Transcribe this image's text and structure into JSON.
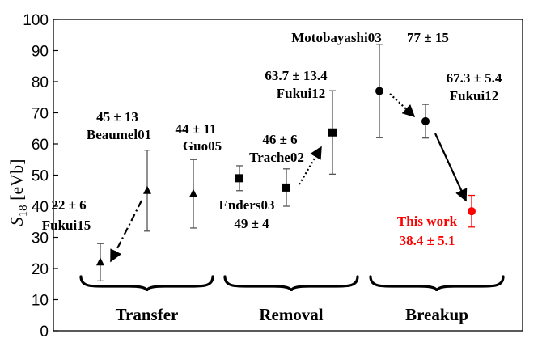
{
  "chart_data": {
    "type": "scatter",
    "title": "",
    "ylabel": "S18 [eVb]",
    "ylabel_main": "S",
    "ylabel_sub": "18",
    "ylabel_unit": " [eVb]",
    "ylim": [
      0,
      100
    ],
    "yticks": [
      0,
      10,
      20,
      30,
      40,
      50,
      60,
      70,
      80,
      90,
      100
    ],
    "grid": false,
    "groups": [
      "Transfer",
      "Removal",
      "Breakup"
    ],
    "points": [
      {
        "label": "Fukui15",
        "value_text": "22 ± 6",
        "group": "Transfer",
        "x": 1,
        "y": 22,
        "err_low": 16,
        "err_high": 28,
        "marker": "triangle",
        "color": "#000000"
      },
      {
        "label": "Beaumel01",
        "value_text": "45 ± 13",
        "group": "Transfer",
        "x": 2,
        "y": 45,
        "err_low": 32,
        "err_high": 58,
        "marker": "triangle",
        "color": "#000000"
      },
      {
        "label": "Guo05",
        "value_text": "44 ± 11",
        "group": "Transfer",
        "x": 3,
        "y": 44,
        "err_low": 33,
        "err_high": 55,
        "marker": "triangle",
        "color": "#000000"
      },
      {
        "label": "Enders03",
        "value_text": "49 ± 4",
        "group": "Removal",
        "x": 4,
        "y": 49,
        "err_low": 45,
        "err_high": 53,
        "marker": "square",
        "color": "#000000"
      },
      {
        "label": "Trache02",
        "value_text": "46 ± 6",
        "group": "Removal",
        "x": 5,
        "y": 46,
        "err_low": 40,
        "err_high": 52,
        "marker": "square",
        "color": "#000000"
      },
      {
        "label": "Fukui12",
        "value_text": "63.7 ± 13.4",
        "group": "Removal",
        "x": 6,
        "y": 63.7,
        "err_low": 50.3,
        "err_high": 77.1,
        "marker": "square",
        "color": "#000000"
      },
      {
        "label": "Motobayashi03",
        "value_text": "77 ± 15",
        "group": "Breakup",
        "x": 7,
        "y": 77,
        "err_low": 62,
        "err_high": 92,
        "marker": "circle",
        "color": "#000000"
      },
      {
        "label": "Fukui12",
        "value_text": "67.3 ± 5.4",
        "group": "Breakup",
        "x": 8,
        "y": 67.3,
        "err_low": 61.9,
        "err_high": 72.7,
        "marker": "circle",
        "color": "#000000"
      },
      {
        "label": "This work",
        "value_text": "38.4 ± 5.1",
        "group": "Breakup",
        "x": 9,
        "y": 38.4,
        "err_low": 33.3,
        "err_high": 43.5,
        "marker": "circle",
        "color": "#ff0000"
      }
    ],
    "arrows": [
      {
        "from": 0,
        "to": 1,
        "style": "dash-dot"
      },
      {
        "from": 4,
        "to": 5,
        "style": "dotted"
      },
      {
        "from": 6,
        "to": 7,
        "style": "dotted"
      },
      {
        "from": 7,
        "to": 8,
        "style": "solid"
      }
    ]
  }
}
